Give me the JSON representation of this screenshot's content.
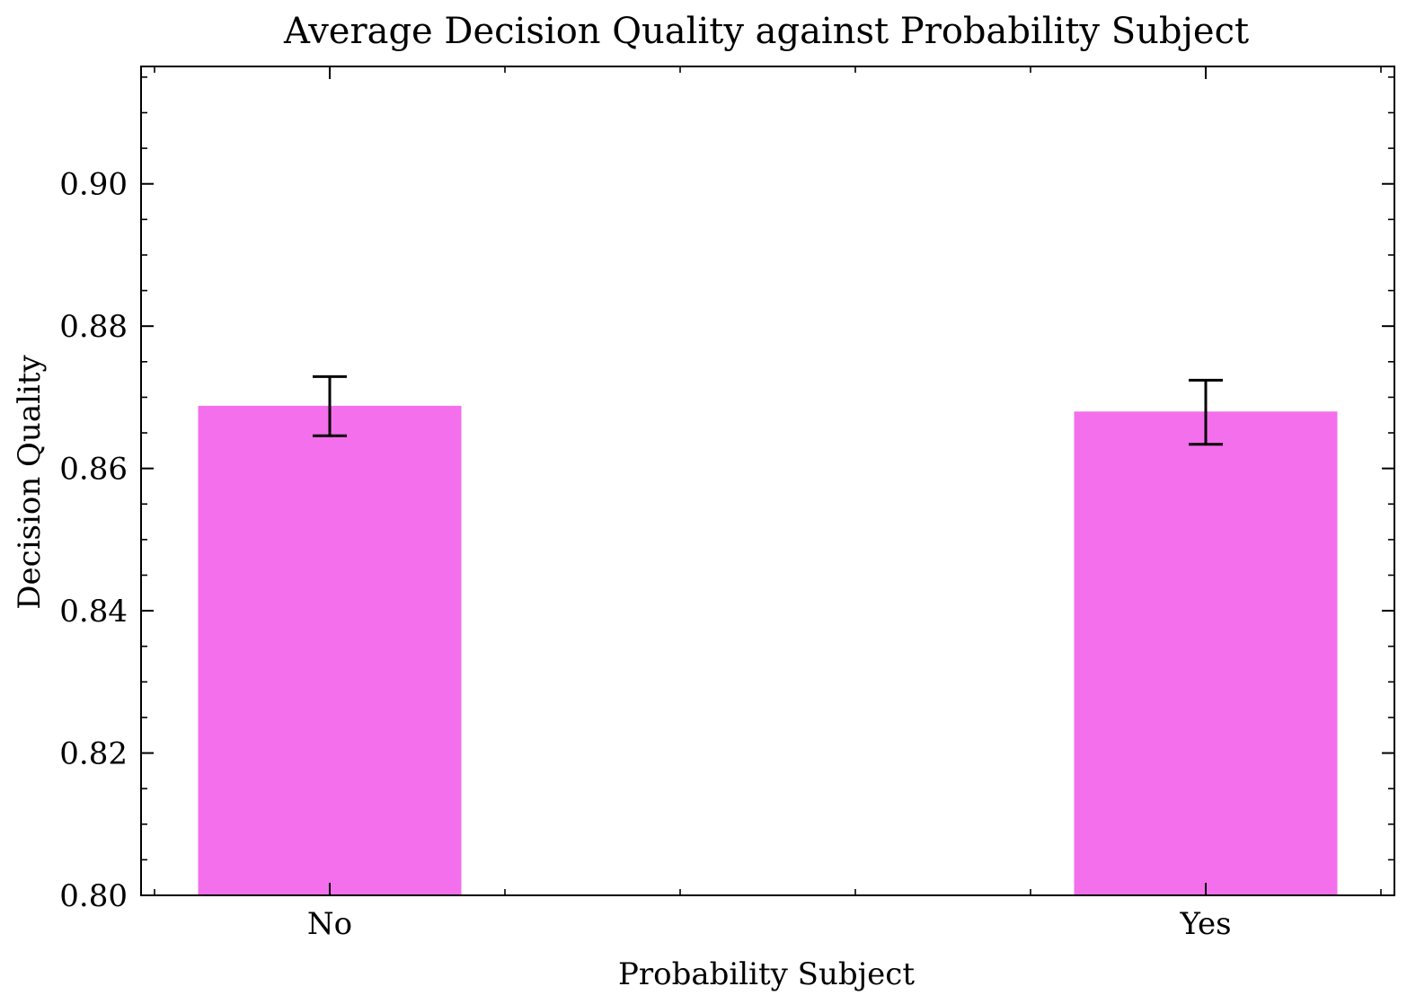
{
  "chart_data": {
    "type": "bar",
    "title": "Average Decision Quality against Probability Subject",
    "xlabel": "Probability Subject",
    "ylabel": "Decision Quality",
    "categories": [
      "No",
      "Yes"
    ],
    "values": [
      0.8688,
      0.868
    ],
    "error_low": [
      0.8646,
      0.8634
    ],
    "error_high": [
      0.8729,
      0.8724
    ],
    "ylim": [
      0.8,
      0.9165
    ],
    "yticks": [
      0.8,
      0.82,
      0.84,
      0.86,
      0.88,
      0.9
    ],
    "ytick_labels": [
      "0.80",
      "0.82",
      "0.84",
      "0.86",
      "0.88",
      "0.90"
    ],
    "bar_color": "#f46fec",
    "error_color": "#000000",
    "grid": false,
    "legend": "none"
  }
}
